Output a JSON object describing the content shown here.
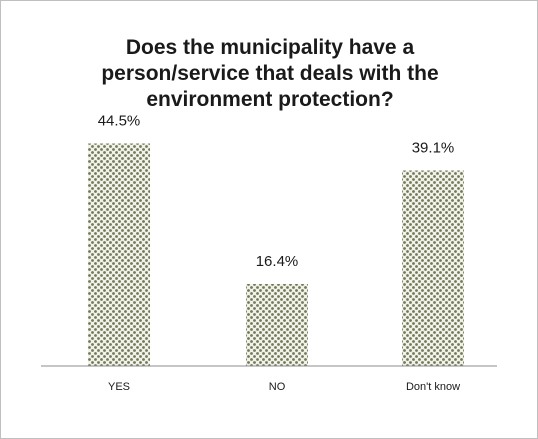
{
  "chart_data": {
    "type": "bar",
    "title": "Does the municipality  have a\nperson/service that deals with the\nenvironment protection?",
    "categories": [
      "YES",
      "NO",
      "Don't know"
    ],
    "values": [
      44.5,
      16.4,
      39.1
    ],
    "data_labels": [
      "44.5%",
      "16.4%",
      "39.1%"
    ],
    "unit": "%",
    "ylim": [
      0,
      50
    ],
    "grid": false,
    "legend": "none",
    "bar_pattern": "dotted-diamond",
    "bar_color": "#6f7a58",
    "axis_color": "#8c8c8c"
  }
}
